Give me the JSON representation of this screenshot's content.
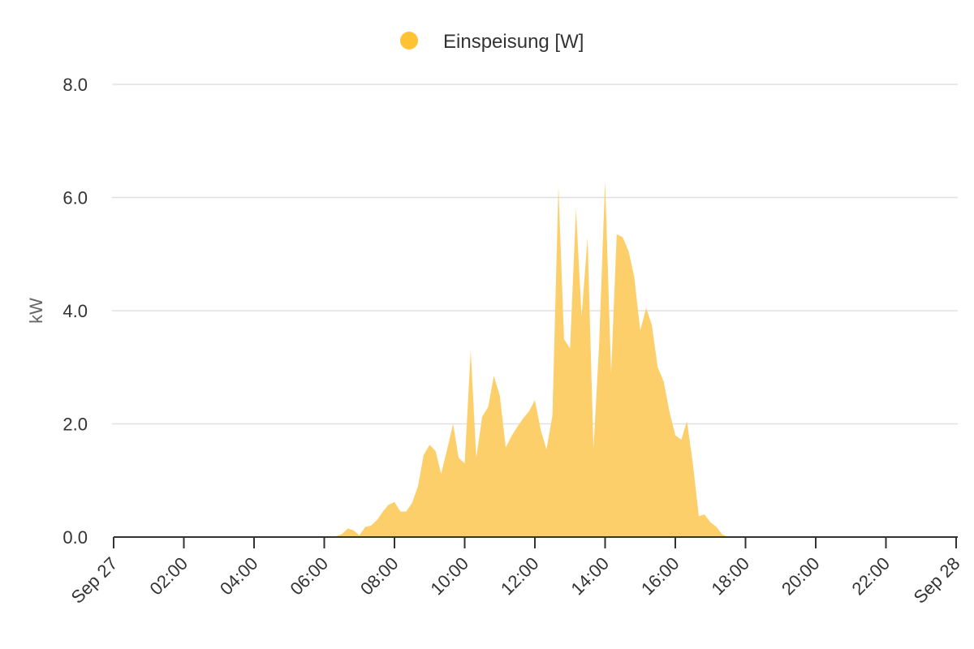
{
  "chart_data": {
    "type": "area",
    "legend": {
      "position": "top-center",
      "entries": [
        {
          "label": "Einspeisung [W]",
          "color": "#FFC233"
        }
      ]
    },
    "ylabel": "kW",
    "xlabel": "",
    "ylim": [
      0,
      8
    ],
    "yticks": [
      "0.0",
      "2.0",
      "4.0",
      "6.0",
      "8.0"
    ],
    "xlim_hours": [
      0,
      24
    ],
    "xticks": [
      "Sep 27",
      "02:00",
      "04:00",
      "06:00",
      "08:00",
      "10:00",
      "12:00",
      "14:00",
      "16:00",
      "18:00",
      "20:00",
      "22:00",
      "Sep 28"
    ],
    "grid": true,
    "fill_color": "#FDCF6A",
    "series": [
      {
        "name": "Einspeisung [W]",
        "x_hours": [
          0,
          6.25,
          6.5,
          6.67,
          6.83,
          7.0,
          7.17,
          7.33,
          7.5,
          7.67,
          7.83,
          8.0,
          8.17,
          8.33,
          8.5,
          8.67,
          8.83,
          9.0,
          9.17,
          9.33,
          9.5,
          9.67,
          9.83,
          10.0,
          10.17,
          10.33,
          10.5,
          10.67,
          10.83,
          11.0,
          11.17,
          11.33,
          11.5,
          11.67,
          11.83,
          12.0,
          12.17,
          12.33,
          12.5,
          12.67,
          12.83,
          13.0,
          13.17,
          13.33,
          13.5,
          13.67,
          13.83,
          14.0,
          14.17,
          14.33,
          14.5,
          14.67,
          14.83,
          15.0,
          15.17,
          15.33,
          15.5,
          15.67,
          15.83,
          16.0,
          16.17,
          16.33,
          16.5,
          16.67,
          16.83,
          17.0,
          17.17,
          17.33,
          17.5,
          24
        ],
        "values_kw": [
          0,
          0,
          0.05,
          0.15,
          0.12,
          0.03,
          0.18,
          0.2,
          0.3,
          0.45,
          0.57,
          0.62,
          0.45,
          0.45,
          0.6,
          0.9,
          1.45,
          1.63,
          1.52,
          1.12,
          1.55,
          2.0,
          1.4,
          1.3,
          3.3,
          1.4,
          2.13,
          2.3,
          2.85,
          2.5,
          1.58,
          1.78,
          1.95,
          2.1,
          2.22,
          2.42,
          1.88,
          1.55,
          2.15,
          6.2,
          3.5,
          3.33,
          5.8,
          3.9,
          5.3,
          1.55,
          3.4,
          6.3,
          2.9,
          5.35,
          5.3,
          5.05,
          4.6,
          3.65,
          4.05,
          3.75,
          3.0,
          2.75,
          2.23,
          1.8,
          1.72,
          2.05,
          1.3,
          0.37,
          0.4,
          0.26,
          0.18,
          0.05,
          0,
          0
        ]
      }
    ]
  }
}
